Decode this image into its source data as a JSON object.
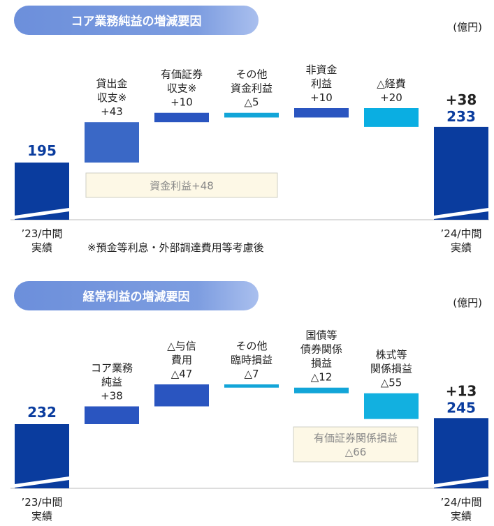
{
  "chart_data": [
    {
      "type": "waterfall",
      "title": "コア業務純益の増減要因",
      "unit": "(億円)",
      "start": {
        "label": [
          "’23/中間",
          "実績"
        ],
        "value": 195
      },
      "end": {
        "label": [
          "’24/中間",
          "実績"
        ],
        "value": 233,
        "change_label": "+38"
      },
      "categories": [
        [
          "貸出金",
          "収支※"
        ],
        [
          "有価証券",
          "収支※"
        ],
        [
          "その他",
          "資金利益"
        ],
        [
          "非資金",
          "利益"
        ],
        [
          "△経費"
        ]
      ],
      "values": [
        43,
        10,
        -5,
        10,
        -20
      ],
      "value_labels": [
        "+43",
        "+10",
        "△5",
        "+10",
        "+20"
      ],
      "colors": [
        "#3a68c6",
        "#2a55c0",
        "#12a5d8",
        "#2a55c0",
        "#0aaee2"
      ],
      "total_color": "#0a3c9e",
      "group_label": [
        "資金利益+48"
      ],
      "note": "※預金等利息・外部調達費用等考慮後"
    },
    {
      "type": "waterfall",
      "title": "経常利益の増減要因",
      "unit": "(億円)",
      "start": {
        "label": [
          "’23/中間",
          "実績"
        ],
        "value": 232
      },
      "end": {
        "label": [
          "’24/中間",
          "実績"
        ],
        "value": 245,
        "change_label": "+13"
      },
      "categories": [
        [
          "コア業務",
          "純益"
        ],
        [
          "△与信",
          "費用"
        ],
        [
          "その他",
          "臨時損益"
        ],
        [
          "国債等",
          "債券関係",
          "損益"
        ],
        [
          "株式等",
          "関係損益"
        ]
      ],
      "values": [
        38,
        47,
        -7,
        -12,
        -55
      ],
      "value_labels": [
        "+38",
        "△47",
        "△7",
        "△12",
        "△55"
      ],
      "colors": [
        "#2a55c0",
        "#2a55c0",
        "#12a5d8",
        "#12a5d8",
        "#12b0e0"
      ],
      "total_color": "#0a3c9e",
      "group_label": [
        "有価証券関係損益",
        "△66"
      ]
    }
  ]
}
